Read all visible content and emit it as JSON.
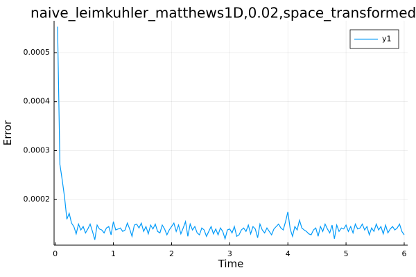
{
  "chart_data": {
    "type": "line",
    "title": "naive_leimkuhler_matthews1D,0.02,space_transformed",
    "x_label": "Time",
    "y_label": "Error",
    "xlim": [
      -0.02,
      6.06
    ],
    "ylim": [
      0.000107,
      0.000565
    ],
    "xticks": [
      0,
      1,
      2,
      3,
      4,
      5,
      6
    ],
    "yticks": [
      0.0002,
      0.0003,
      0.0004,
      0.0005
    ],
    "grid": true,
    "legend_position": "top-right",
    "x": [
      0.04,
      0.08,
      0.12,
      0.16,
      0.2,
      0.24,
      0.28,
      0.32,
      0.36,
      0.4,
      0.44,
      0.48,
      0.52,
      0.56,
      0.6,
      0.64,
      0.68,
      0.72,
      0.76,
      0.8,
      0.84,
      0.88,
      0.92,
      0.96,
      1.0,
      1.04,
      1.08,
      1.12,
      1.16,
      1.2,
      1.24,
      1.28,
      1.32,
      1.36,
      1.4,
      1.44,
      1.48,
      1.52,
      1.56,
      1.6,
      1.64,
      1.68,
      1.72,
      1.76,
      1.8,
      1.84,
      1.88,
      1.92,
      1.96,
      2.0,
      2.04,
      2.08,
      2.12,
      2.16,
      2.2,
      2.24,
      2.28,
      2.32,
      2.36,
      2.4,
      2.44,
      2.48,
      2.52,
      2.56,
      2.6,
      2.64,
      2.68,
      2.72,
      2.76,
      2.8,
      2.84,
      2.88,
      2.92,
      2.96,
      3.0,
      3.04,
      3.08,
      3.12,
      3.16,
      3.2,
      3.24,
      3.28,
      3.32,
      3.36,
      3.4,
      3.44,
      3.48,
      3.52,
      3.56,
      3.6,
      3.64,
      3.68,
      3.72,
      3.76,
      3.8,
      3.84,
      3.88,
      3.92,
      3.96,
      4.0,
      4.04,
      4.08,
      4.12,
      4.16,
      4.2,
      4.24,
      4.28,
      4.32,
      4.36,
      4.4,
      4.44,
      4.48,
      4.52,
      4.56,
      4.6,
      4.64,
      4.68,
      4.72,
      4.76,
      4.8,
      4.84,
      4.88,
      4.92,
      4.96,
      5.0,
      5.04,
      5.08,
      5.12,
      5.16,
      5.2,
      5.24,
      5.28,
      5.32,
      5.36,
      5.4,
      5.44,
      5.48,
      5.52,
      5.56,
      5.6,
      5.64,
      5.68,
      5.72,
      5.76,
      5.8,
      5.84,
      5.88,
      5.92,
      5.96,
      6.0
    ],
    "series": [
      {
        "name": "y1",
        "color": "#009af9",
        "values": [
          0.000553,
          0.000272,
          0.00024,
          0.000205,
          0.00016,
          0.000172,
          0.000152,
          0.000145,
          0.00013,
          0.00015,
          0.000138,
          0.000145,
          0.000132,
          0.00014,
          0.00015,
          0.000135,
          0.000118,
          0.000148,
          0.00014,
          0.000138,
          0.000132,
          0.000142,
          0.000145,
          0.000128,
          0.000155,
          0.000138,
          0.00014,
          0.000142,
          0.000135,
          0.000138,
          0.000152,
          0.00014,
          0.000125,
          0.000148,
          0.00015,
          0.000142,
          0.000152,
          0.000135,
          0.000145,
          0.00013,
          0.000148,
          0.00014,
          0.00015,
          0.000135,
          0.000132,
          0.000148,
          0.00014,
          0.000128,
          0.000138,
          0.000145,
          0.000152,
          0.000135,
          0.000148,
          0.00013,
          0.000142,
          0.000155,
          0.000125,
          0.00015,
          0.000138,
          0.000145,
          0.000132,
          0.000128,
          0.000142,
          0.000138,
          0.000125,
          0.000135,
          0.000145,
          0.00013,
          0.00014,
          0.000128,
          0.000142,
          0.000135,
          0.00012,
          0.000138,
          0.00014,
          0.000132,
          0.000145,
          0.000125,
          0.000128,
          0.000138,
          0.000142,
          0.000135,
          0.000148,
          0.00013,
          0.000145,
          0.00014,
          0.000122,
          0.00015,
          0.000138,
          0.000132,
          0.000142,
          0.000135,
          0.000128,
          0.00014,
          0.000145,
          0.00015,
          0.000142,
          0.000138,
          0.000155,
          0.000175,
          0.00014,
          0.000125,
          0.000145,
          0.000138,
          0.000158,
          0.000142,
          0.000138,
          0.000135,
          0.00013,
          0.000128,
          0.000138,
          0.000142,
          0.000125,
          0.000145,
          0.000135,
          0.00015,
          0.00014,
          0.000132,
          0.000148,
          0.00012,
          0.000148,
          0.000135,
          0.000142,
          0.00014,
          0.000148,
          0.000135,
          0.000145,
          0.000132,
          0.00015,
          0.00014,
          0.000142,
          0.00015,
          0.000138,
          0.000145,
          0.000128,
          0.000142,
          0.000135,
          0.00015,
          0.000138,
          0.000145,
          0.00013,
          0.000148,
          0.000132,
          0.00014,
          0.000145,
          0.000138,
          0.000142,
          0.00015,
          0.000135,
          0.000128
        ]
      }
    ]
  }
}
